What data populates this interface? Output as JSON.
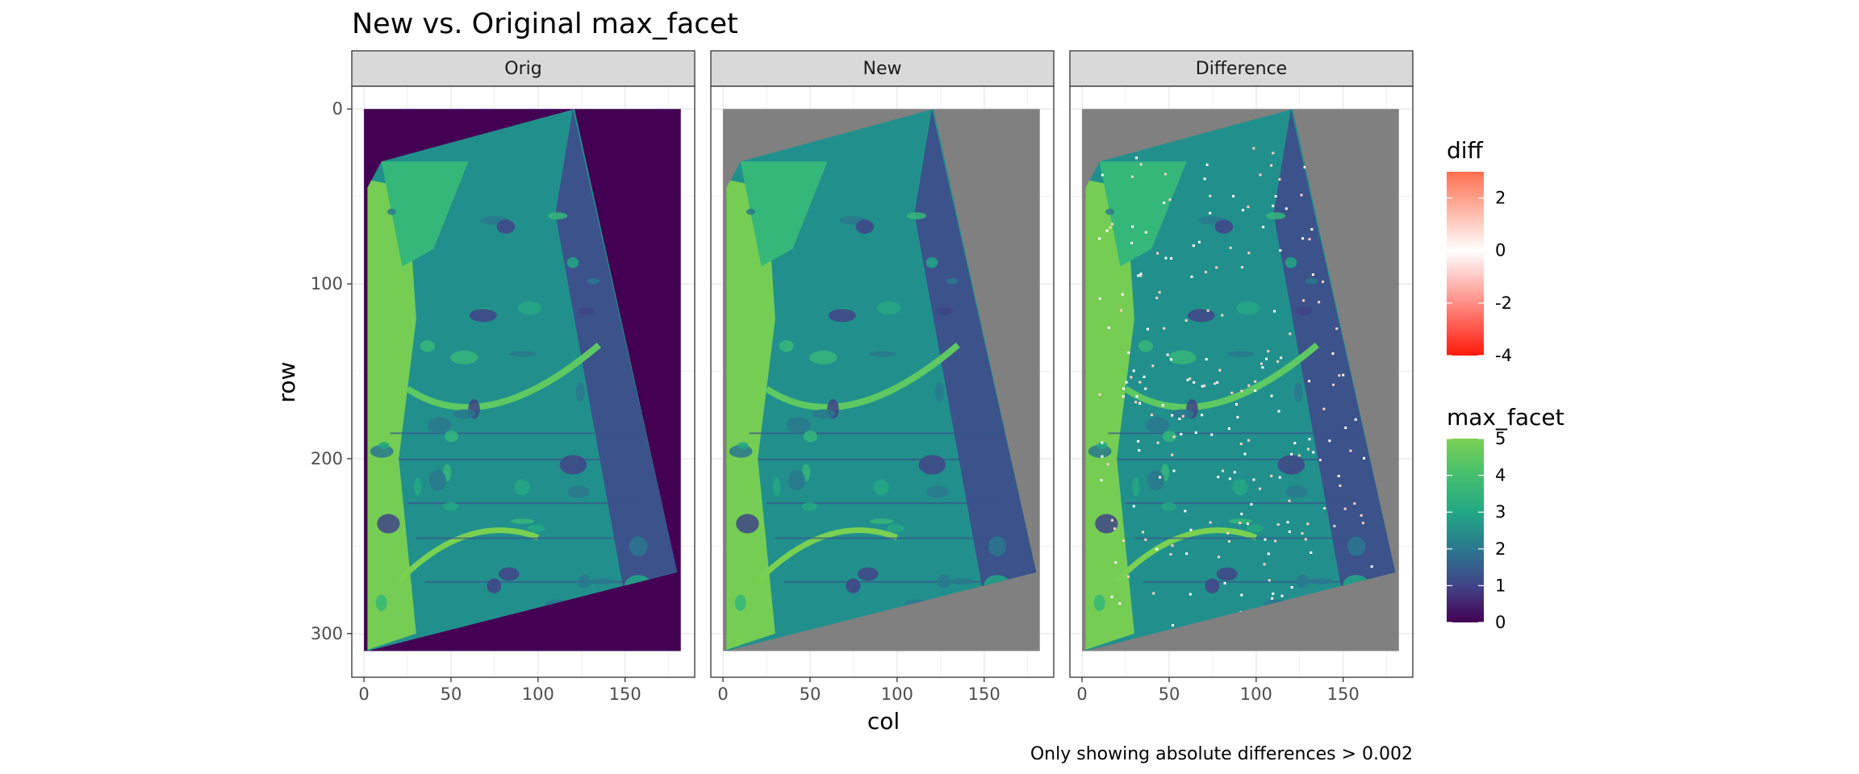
{
  "chart_data": {
    "type": "heatmap",
    "title": "New vs. Original max_facet",
    "xlabel": "col",
    "ylabel": "row",
    "caption": "Only showing absolute differences > 0.002",
    "facets": [
      "Orig",
      "New",
      "Difference"
    ],
    "xlim": [
      -7,
      190
    ],
    "ylim": [
      325,
      -13
    ],
    "x_ticks": [
      0,
      50,
      100,
      150
    ],
    "y_ticks": [
      0,
      100,
      200,
      300
    ],
    "y_reversed": true,
    "grid": true,
    "raster": {
      "cols": 182,
      "rows": 310,
      "valid_region_polygon": [
        [
          121,
          0
        ],
        [
          180,
          265
        ],
        [
          2,
          310
        ],
        [
          2,
          45
        ],
        [
          10,
          30
        ]
      ]
    },
    "legends": [
      {
        "title": "diff",
        "type": "gradient",
        "range": [
          -4,
          3
        ],
        "ticks": [
          2,
          0,
          -2,
          -4
        ],
        "colors": {
          "low": "#ff1a0a",
          "mid": "#ffffff",
          "high": "#ff7050"
        }
      },
      {
        "title": "max_facet",
        "type": "gradient",
        "range": [
          0,
          5
        ],
        "ticks": [
          5,
          4,
          3,
          2,
          1,
          0
        ],
        "colors": [
          "#440154",
          "#3b528b",
          "#21908c",
          "#2fb47c",
          "#5ec962",
          "#7ad151"
        ]
      }
    ],
    "background": {
      "Orig": "#440154",
      "New": "#808080",
      "Difference": "#808080"
    }
  }
}
